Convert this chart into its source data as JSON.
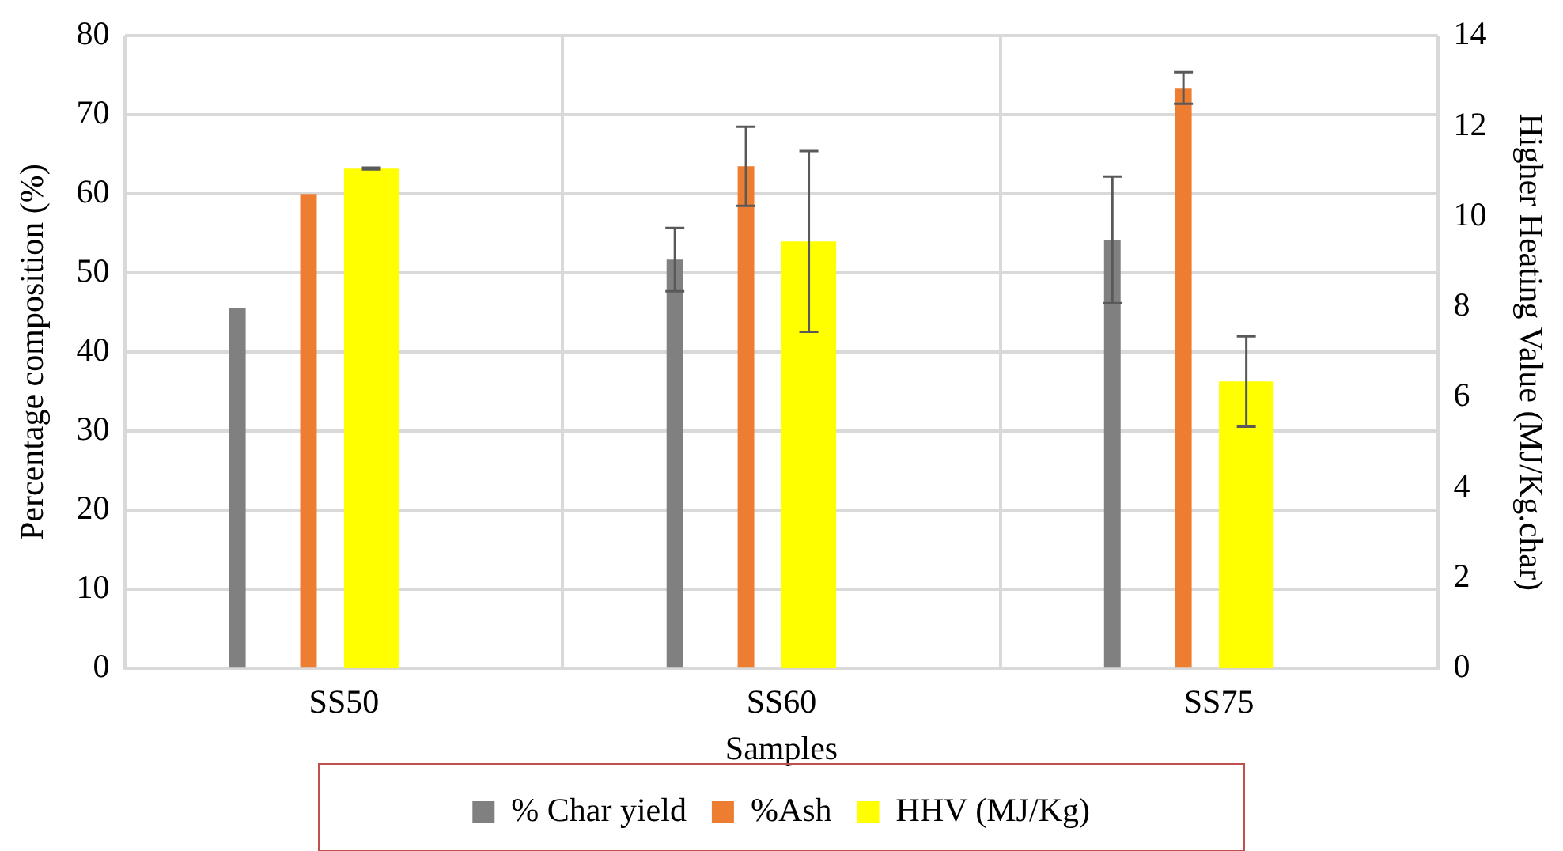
{
  "chart_data": {
    "type": "bar",
    "xlabel": "Samples",
    "ylabel": "Percentage composition (%)",
    "y2label": "Higher Heating Value (MJ/Kg.char)",
    "categories": [
      "SS50",
      "SS60",
      "SS75"
    ],
    "series": [
      {
        "name": "% Char yield",
        "color": "#808080",
        "values": [
          45.6,
          51.7,
          54.2
        ],
        "errors": [
          null,
          4,
          8
        ]
      },
      {
        "name": "%Ash",
        "color": "#ed7d31",
        "values": [
          60,
          63.5,
          73.4
        ],
        "errors": [
          null,
          5,
          2
        ]
      },
      {
        "name": "HHV (MJ/Kg)",
        "color": "#ffff00",
        "values": [
          11.06,
          9.45,
          6.35
        ],
        "errors": [
          0.02,
          2,
          1
        ],
        "axis": "y2"
      }
    ],
    "ylim": [
      0,
      80
    ],
    "yticks": [
      0,
      10,
      20,
      30,
      40,
      50,
      60,
      70,
      80
    ],
    "y2lim": [
      0,
      14
    ],
    "y2ticks": [
      0,
      2,
      4,
      6,
      8,
      10,
      12,
      14
    ],
    "grid": true,
    "legend": "bottom"
  }
}
